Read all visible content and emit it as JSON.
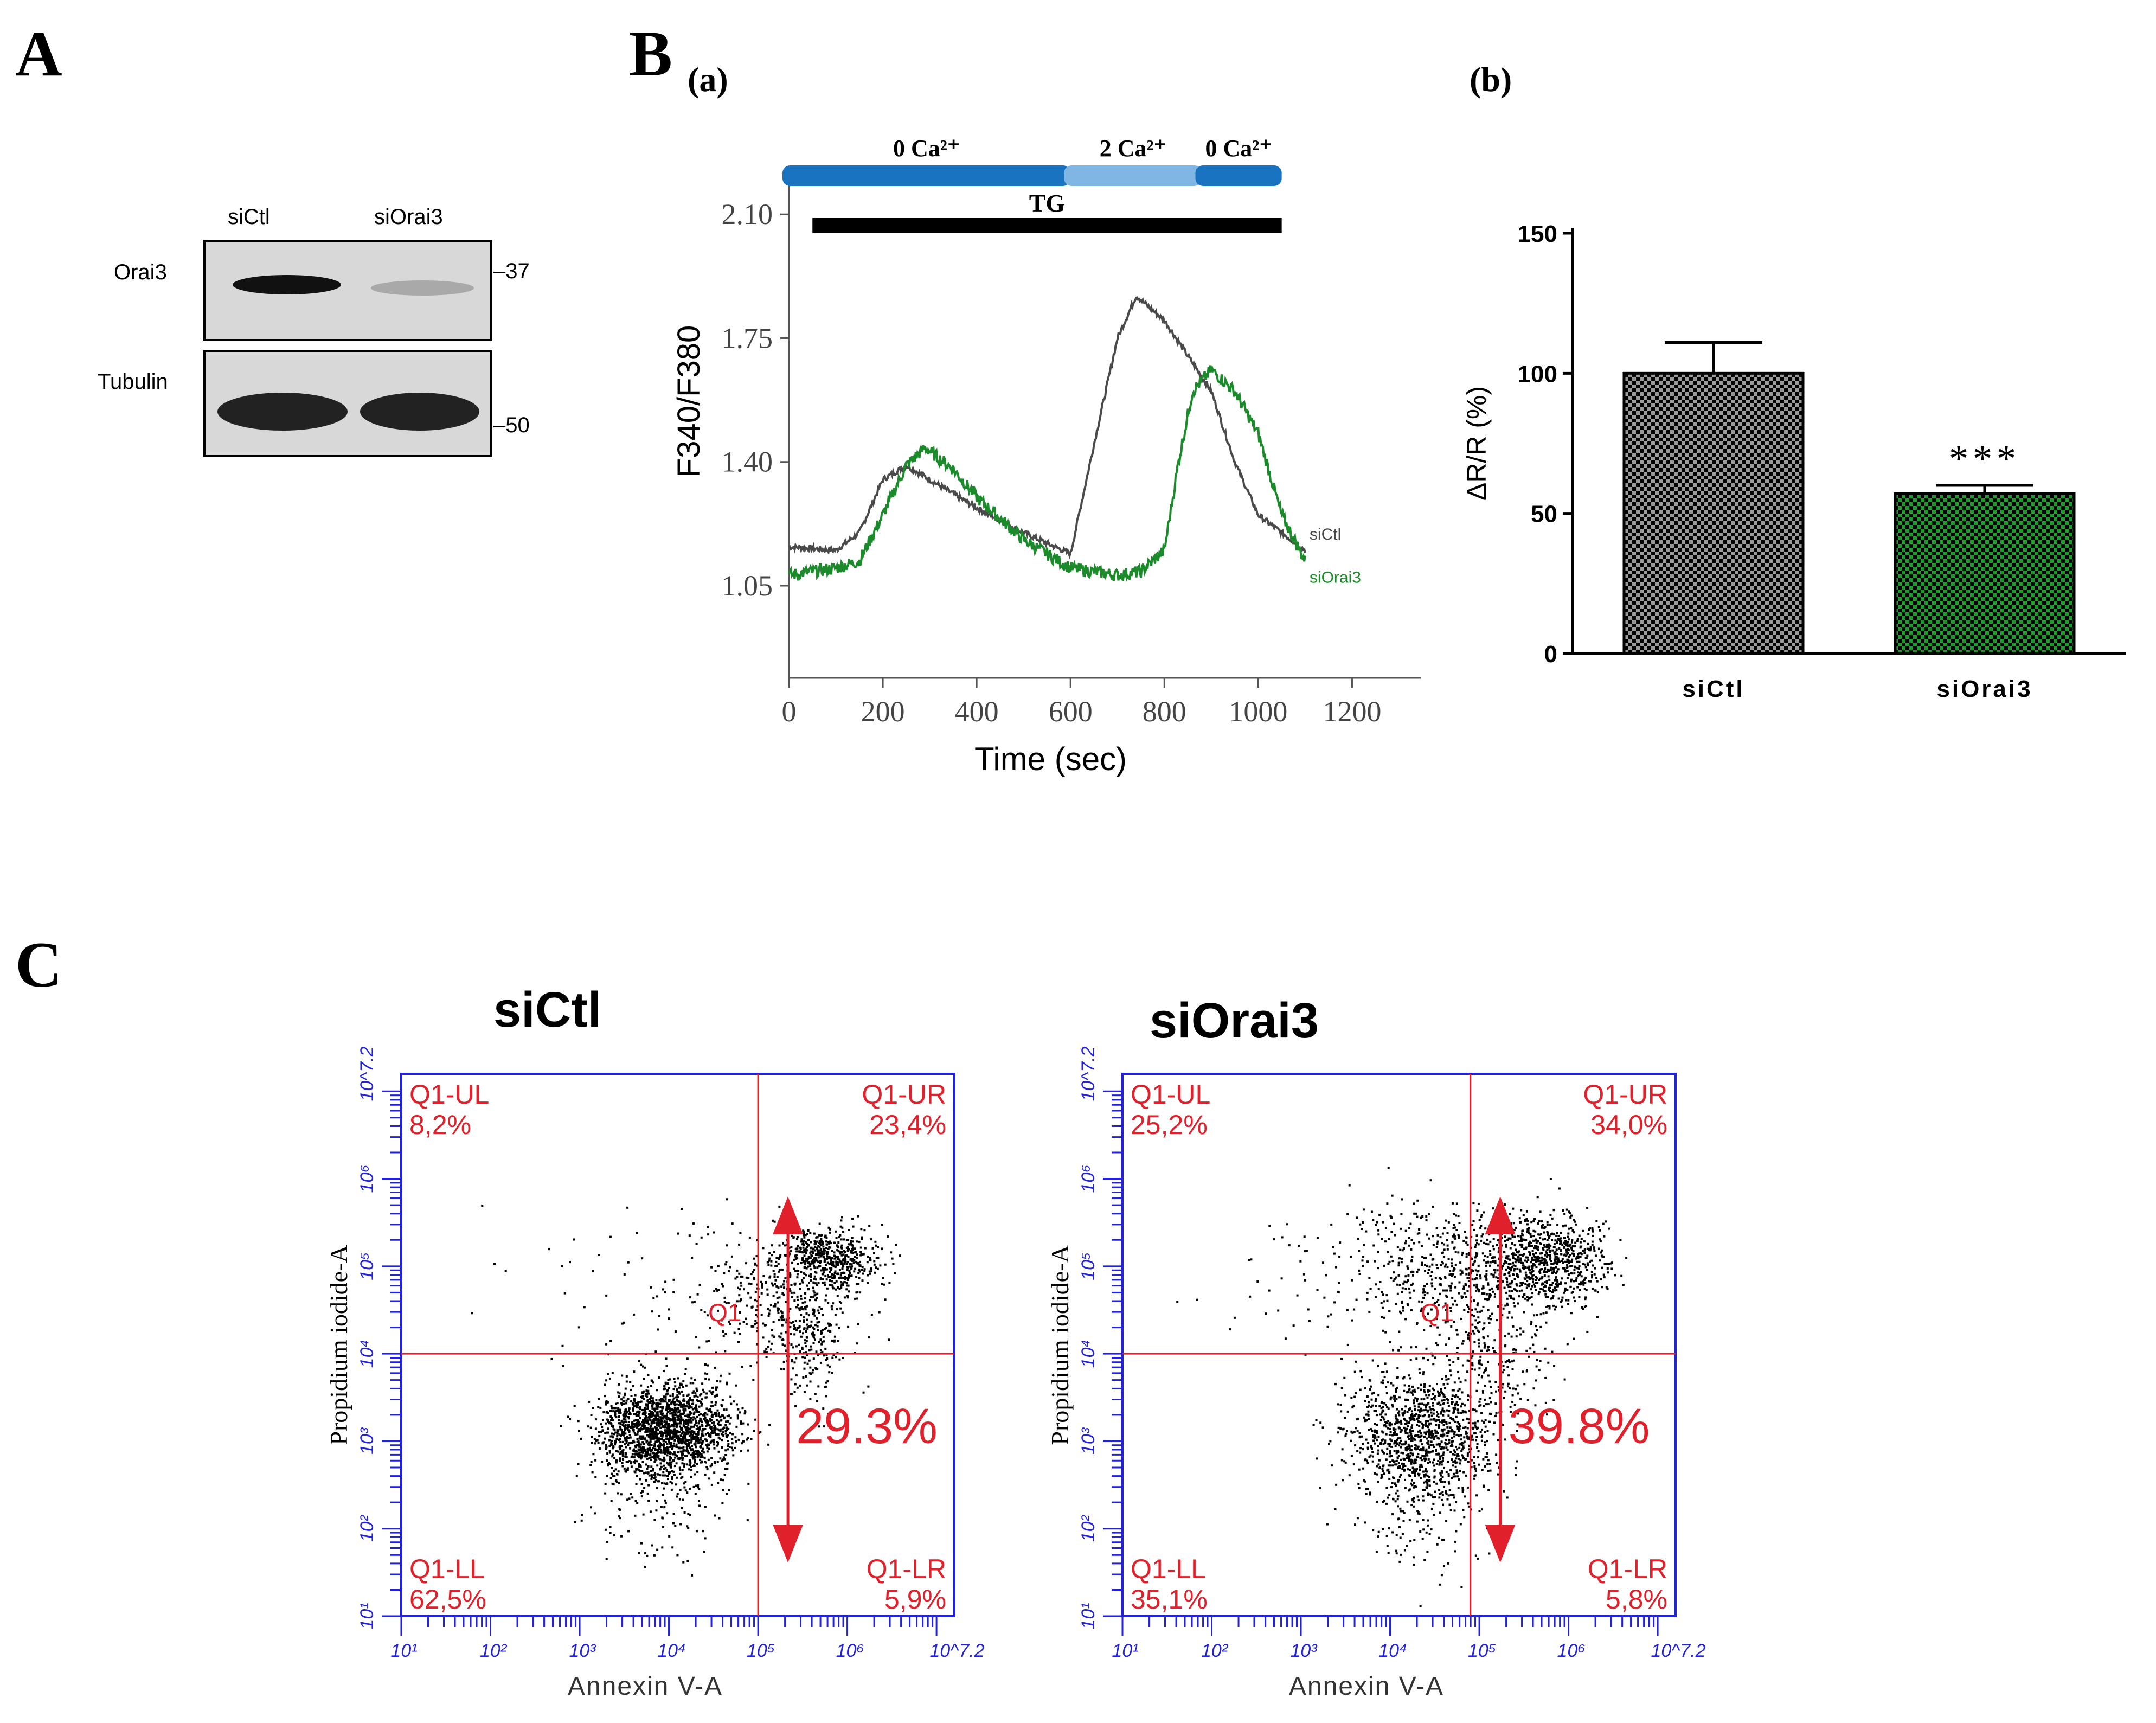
{
  "panels": {
    "A": "A",
    "B": "B",
    "B_a": "(a)",
    "B_b": "(b)",
    "C": "C"
  },
  "blot": {
    "lanes": [
      "siCtl",
      "siOrai3"
    ],
    "rows": [
      {
        "label": "Orai3",
        "marker": "37"
      },
      {
        "label": "Tubulin",
        "marker": "50"
      }
    ]
  },
  "colors": {
    "blue_bar": "#1a73c0",
    "light_blue_bar": "#7fb6e3",
    "gray_trace": "#4a4a4a",
    "green_trace": "#1b8a2a",
    "red": "#e0202a",
    "axis_blue": "#2222dd"
  },
  "chart_data": [
    {
      "type": "line",
      "id": "B-a",
      "xlabel": "Time (sec)",
      "ylabel": "F340/F380",
      "xlim": [
        0,
        1300
      ],
      "ylim": [
        0.82,
        2.2
      ],
      "xticks": [
        0,
        200,
        400,
        600,
        800,
        1000,
        1200
      ],
      "yticks": [
        "1.05",
        "1.40",
        "1.75",
        "2.10"
      ],
      "conditions": [
        {
          "label": "0 Ca²⁺",
          "start": 0,
          "end": 600,
          "color": "blue"
        },
        {
          "label": "2 Ca²⁺",
          "start": 600,
          "end": 880,
          "color": "light_blue"
        },
        {
          "label": "0 Ca²⁺",
          "start": 880,
          "end": 1050,
          "color": "blue"
        }
      ],
      "treatment": {
        "label": "TG",
        "start": 50,
        "end": 1050
      },
      "series": [
        {
          "name": "siCtl",
          "x": [
            0,
            100,
            150,
            200,
            250,
            300,
            400,
            500,
            600,
            650,
            700,
            740,
            800,
            850,
            900,
            950,
            1000,
            1050,
            1080,
            1100
          ],
          "y": [
            1.16,
            1.15,
            1.2,
            1.35,
            1.39,
            1.35,
            1.27,
            1.2,
            1.14,
            1.45,
            1.75,
            1.87,
            1.8,
            1.7,
            1.6,
            1.4,
            1.25,
            1.2,
            1.17,
            1.15
          ]
        },
        {
          "name": "siOrai3",
          "x": [
            0,
            100,
            150,
            200,
            250,
            290,
            350,
            400,
            500,
            600,
            700,
            750,
            800,
            830,
            860,
            900,
            950,
            1000,
            1050,
            1100
          ],
          "y": [
            1.08,
            1.1,
            1.12,
            1.25,
            1.39,
            1.44,
            1.38,
            1.3,
            1.18,
            1.1,
            1.08,
            1.09,
            1.15,
            1.4,
            1.6,
            1.66,
            1.6,
            1.48,
            1.25,
            1.12
          ]
        }
      ]
    },
    {
      "type": "bar",
      "id": "B-b",
      "categories": [
        "siCtl",
        "siOrai3"
      ],
      "values": [
        100,
        57
      ],
      "errors": [
        11,
        3
      ],
      "ylabel": "ΔR/R (%)",
      "ylim": [
        0,
        150
      ],
      "yticks": [
        "0",
        "50",
        "100",
        "150"
      ],
      "significance": [
        "",
        "***"
      ]
    },
    {
      "type": "scatter",
      "id": "C-siCtl",
      "title": "siCtl",
      "xlabel": "Annexin V-A",
      "ylabel": "Propidium iodide-A",
      "quadrants": [
        {
          "name": "Q1-UL",
          "value": "8,2%"
        },
        {
          "name": "Q1-UR",
          "value": "23,4%"
        },
        {
          "name": "Q1-LL",
          "value": "62,5%"
        },
        {
          "name": "Q1-LR",
          "value": "5,9%"
        }
      ],
      "gate_label": "Q1",
      "apoptosis": "29.3%",
      "ticks": [
        "10¹",
        "10²",
        "10³",
        "10⁴",
        "10⁵",
        "10⁶",
        "10^7.2"
      ],
      "threshold": {
        "x": 5.0,
        "y": 4.0
      }
    },
    {
      "type": "scatter",
      "id": "C-siOrai3",
      "title": "siOrai3",
      "xlabel": "Annexin V-A",
      "ylabel": "Propidium iodide-A",
      "quadrants": [
        {
          "name": "Q1-UL",
          "value": "25,2%"
        },
        {
          "name": "Q1-UR",
          "value": "34,0%"
        },
        {
          "name": "Q1-LL",
          "value": "35,1%"
        },
        {
          "name": "Q1-LR",
          "value": "5,8%"
        }
      ],
      "gate_label": "Q1",
      "apoptosis": "39.8%",
      "ticks": [
        "10¹",
        "10²",
        "10³",
        "10⁴",
        "10⁵",
        "10⁶",
        "10^7.2"
      ],
      "threshold": {
        "x": 4.9,
        "y": 4.0
      }
    }
  ]
}
